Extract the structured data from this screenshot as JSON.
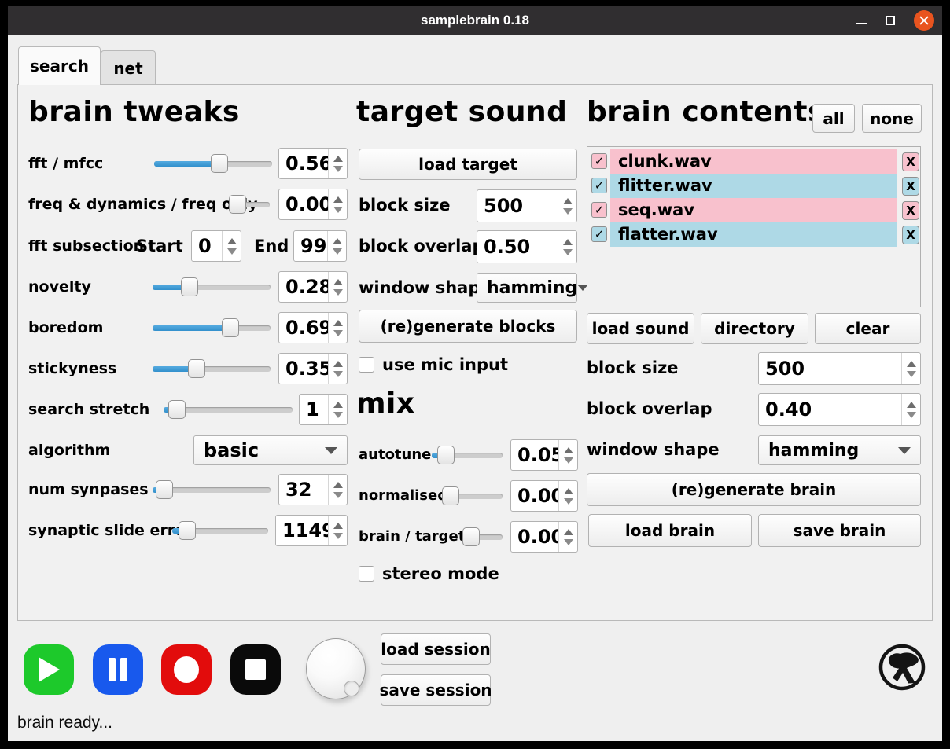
{
  "window": {
    "title": "samplebrain 0.18",
    "status": "brain ready..."
  },
  "tabs": {
    "search": "search",
    "net": "net"
  },
  "colors": {
    "accent_blue": "#3a99d9",
    "row_pink": "#f8c1cd",
    "row_blue": "#aed9e6",
    "close_orange": "#e9541f",
    "play_green": "#1dc92b",
    "pause_blue": "#1859ed",
    "record_red": "#e20c0c",
    "stop_black": "#0a0a0a"
  },
  "brain_tweaks": {
    "title": "brain tweaks",
    "fft_mfcc": {
      "label": "fft / mfcc",
      "value": "0.56",
      "percent": 56
    },
    "freq_dyn": {
      "label": "freq & dynamics / freq only",
      "value": "0.00",
      "percent": 0
    },
    "fft_subsection": {
      "label": "fft subsection",
      "start_label": "Start",
      "start_value": "0",
      "end_label": "End",
      "end_value": "99"
    },
    "novelty": {
      "label": "novelty",
      "value": "0.28",
      "percent": 28
    },
    "boredom": {
      "label": "boredom",
      "value": "0.69",
      "percent": 69
    },
    "stickyness": {
      "label": "stickyness",
      "value": "0.35",
      "percent": 35
    },
    "search_stretch": {
      "label": "search stretch",
      "value": "1",
      "percent": 4
    },
    "algorithm": {
      "label": "algorithm",
      "value": "basic"
    },
    "num_synpases": {
      "label": "num synpases",
      "value": "32",
      "percent": 3
    },
    "synaptic_slide_error": {
      "label": "synaptic slide error",
      "value": "1149",
      "percent": 8
    }
  },
  "target_sound": {
    "title": "target sound",
    "load_target": "load target",
    "block_size": {
      "label": "block size",
      "value": "500"
    },
    "block_overlap": {
      "label": "block overlap",
      "value": "0.50"
    },
    "window_shape": {
      "label": "window shape",
      "value": "hamming"
    },
    "regenerate": "(re)generate blocks",
    "use_mic": "use mic input"
  },
  "mix": {
    "title": "mix",
    "autotune": {
      "label": "autotune",
      "value": "0.05",
      "percent": 10
    },
    "normalised": {
      "label": "normalised",
      "value": "0.00",
      "percent": 0
    },
    "brain_target": {
      "label": "brain / target",
      "value": "0.00",
      "percent": 0
    },
    "stereo": "stereo mode"
  },
  "brain_contents": {
    "title": "brain contents",
    "all_label": "all",
    "none_label": "none",
    "check_glyph": "✓",
    "remove_glyph": "X",
    "items": [
      {
        "name": "clunk.wav",
        "color": "row_pink",
        "checked": true
      },
      {
        "name": "flitter.wav",
        "color": "row_blue",
        "checked": true
      },
      {
        "name": "seq.wav",
        "color": "row_pink",
        "checked": true
      },
      {
        "name": "flatter.wav",
        "color": "row_blue",
        "checked": true
      }
    ],
    "load_sound": "load sound",
    "directory": "directory",
    "clear": "clear",
    "block_size": {
      "label": "block size",
      "value": "500"
    },
    "block_overlap": {
      "label": "block overlap",
      "value": "0.40"
    },
    "window_shape": {
      "label": "window shape",
      "value": "hamming"
    },
    "regenerate": "(re)generate brain",
    "load_brain": "load brain",
    "save_brain": "save brain"
  },
  "session": {
    "load": "load session",
    "save": "save session"
  }
}
